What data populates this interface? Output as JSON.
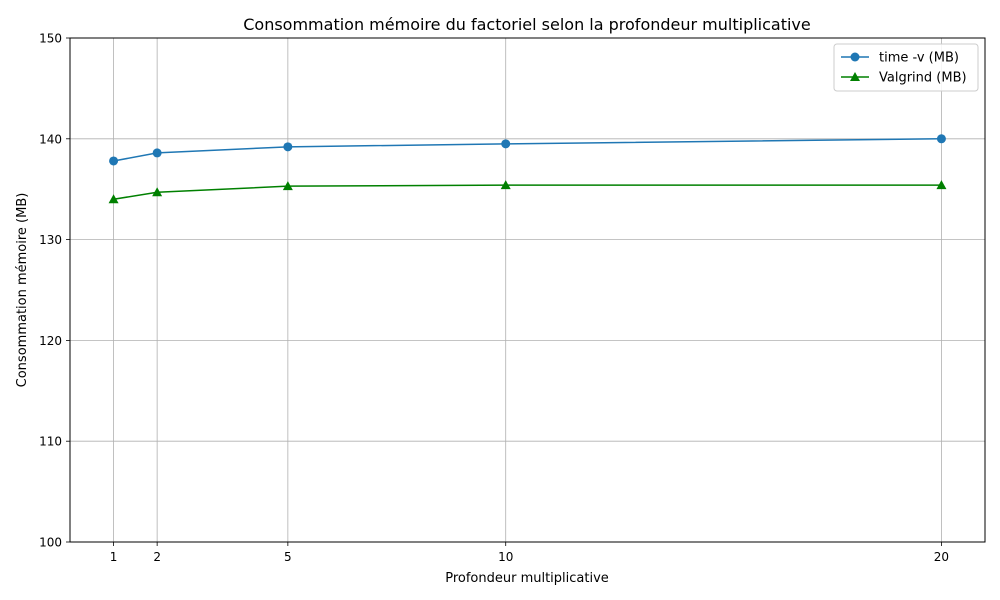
{
  "chart_data": {
    "type": "line",
    "title": "Consommation mémoire du factoriel selon la profondeur multiplicative",
    "xlabel": "Profondeur multiplicative",
    "ylabel": "Consommation mémoire (MB)",
    "x": [
      1,
      2,
      5,
      10,
      20
    ],
    "xticks": [
      1,
      2,
      5,
      10,
      20
    ],
    "yticks": [
      100,
      110,
      120,
      130,
      140,
      150
    ],
    "xlim": [
      0,
      21
    ],
    "ylim": [
      100,
      150
    ],
    "grid": true,
    "legend_position": "top-right",
    "series": [
      {
        "name": "time -v (MB)",
        "values": [
          137.8,
          138.6,
          139.2,
          139.5,
          140.0
        ],
        "color": "#1f77b4",
        "marker": "circle"
      },
      {
        "name": "Valgrind (MB)",
        "values": [
          134.0,
          134.7,
          135.3,
          135.4,
          135.4
        ],
        "color": "#008000",
        "marker": "triangle"
      }
    ]
  }
}
